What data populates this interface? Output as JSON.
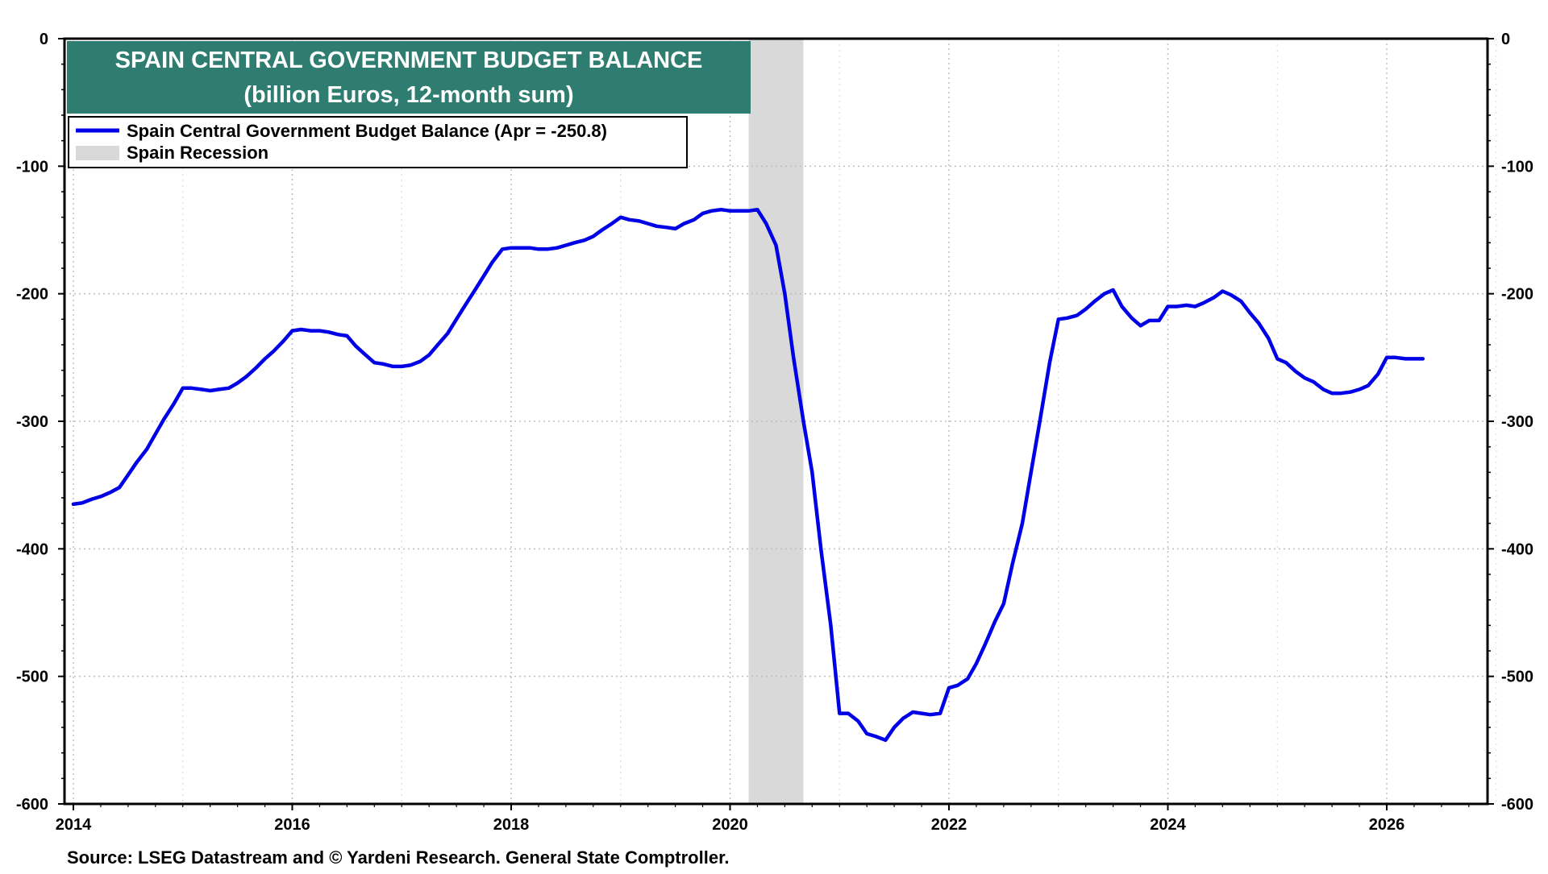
{
  "chart_data": {
    "type": "line",
    "title": "SPAIN CENTRAL GOVERNMENT BUDGET BALANCE",
    "subtitle": "(billion Euros, 12-month sum)",
    "source": "Source: LSEG Datastream and © Yardeni Research. General State Comptroller.",
    "xlim": [
      2014,
      2027
    ],
    "ylim": [
      -600,
      0
    ],
    "x_ticks": [
      2014,
      2016,
      2018,
      2020,
      2022,
      2024,
      2026
    ],
    "x_tick_labels": [
      "2014",
      "2016",
      "2018",
      "2020",
      "2022",
      "2024",
      "2026"
    ],
    "y_ticks": [
      0,
      -100,
      -200,
      -300,
      -400,
      -500,
      -600
    ],
    "y_tick_labels": [
      "0",
      "-100",
      "-200",
      "-300",
      "-400",
      "-500",
      "-600"
    ],
    "grid": true,
    "legend": {
      "position": "top-left",
      "entries": [
        {
          "label": "Spain Central Government Budget Balance (Apr = -250.8)",
          "kind": "line",
          "color": "#0000e6"
        },
        {
          "label": "Spain Recession",
          "kind": "band",
          "color": "#d9d9d9"
        }
      ]
    },
    "shaded_regions": [
      {
        "name": "Spain Recession",
        "x_start": 2020.17,
        "x_end": 2020.67
      }
    ],
    "series": [
      {
        "name": "Spain Central Government Budget Balance",
        "color": "#0000e6",
        "points": [
          [
            2014.0,
            -365
          ],
          [
            2014.08,
            -364
          ],
          [
            2014.17,
            -361
          ],
          [
            2014.25,
            -359
          ],
          [
            2014.33,
            -356
          ],
          [
            2014.42,
            -352
          ],
          [
            2014.5,
            -342
          ],
          [
            2014.58,
            -332
          ],
          [
            2014.67,
            -322
          ],
          [
            2014.75,
            -310
          ],
          [
            2014.83,
            -298
          ],
          [
            2014.92,
            -286
          ],
          [
            2015.0,
            -274
          ],
          [
            2015.08,
            -274
          ],
          [
            2015.17,
            -275
          ],
          [
            2015.25,
            -276
          ],
          [
            2015.33,
            -275
          ],
          [
            2015.42,
            -274
          ],
          [
            2015.5,
            -270
          ],
          [
            2015.58,
            -265
          ],
          [
            2015.67,
            -258
          ],
          [
            2015.75,
            -251
          ],
          [
            2015.83,
            -245
          ],
          [
            2015.92,
            -237
          ],
          [
            2016.0,
            -229
          ],
          [
            2016.08,
            -228
          ],
          [
            2016.17,
            -229
          ],
          [
            2016.25,
            -229
          ],
          [
            2016.33,
            -230
          ],
          [
            2016.42,
            -232
          ],
          [
            2016.5,
            -233
          ],
          [
            2016.58,
            -241
          ],
          [
            2016.67,
            -248
          ],
          [
            2016.75,
            -254
          ],
          [
            2016.83,
            -255
          ],
          [
            2016.92,
            -257
          ],
          [
            2017.0,
            -257
          ],
          [
            2017.08,
            -256
          ],
          [
            2017.17,
            -253
          ],
          [
            2017.25,
            -248
          ],
          [
            2017.33,
            -240
          ],
          [
            2017.42,
            -231
          ],
          [
            2017.5,
            -220
          ],
          [
            2017.58,
            -209
          ],
          [
            2017.67,
            -197
          ],
          [
            2017.75,
            -186
          ],
          [
            2017.83,
            -175
          ],
          [
            2017.92,
            -165
          ],
          [
            2018.0,
            -164
          ],
          [
            2018.08,
            -164
          ],
          [
            2018.17,
            -164
          ],
          [
            2018.25,
            -165
          ],
          [
            2018.33,
            -165
          ],
          [
            2018.42,
            -164
          ],
          [
            2018.5,
            -162
          ],
          [
            2018.58,
            -160
          ],
          [
            2018.67,
            -158
          ],
          [
            2018.75,
            -155
          ],
          [
            2018.83,
            -150
          ],
          [
            2018.92,
            -145
          ],
          [
            2019.0,
            -140
          ],
          [
            2019.08,
            -142
          ],
          [
            2019.17,
            -143
          ],
          [
            2019.25,
            -145
          ],
          [
            2019.33,
            -147
          ],
          [
            2019.42,
            -148
          ],
          [
            2019.5,
            -149
          ],
          [
            2019.58,
            -145
          ],
          [
            2019.67,
            -142
          ],
          [
            2019.75,
            -137
          ],
          [
            2019.83,
            -135
          ],
          [
            2019.92,
            -134
          ],
          [
            2020.0,
            -135
          ],
          [
            2020.08,
            -135
          ],
          [
            2020.17,
            -135
          ],
          [
            2020.25,
            -134
          ],
          [
            2020.33,
            -145
          ],
          [
            2020.42,
            -162
          ],
          [
            2020.5,
            -200
          ],
          [
            2020.58,
            -250
          ],
          [
            2020.67,
            -300
          ],
          [
            2020.75,
            -340
          ],
          [
            2020.83,
            -400
          ],
          [
            2020.92,
            -460
          ],
          [
            2021.0,
            -529
          ],
          [
            2021.08,
            -529
          ],
          [
            2021.17,
            -535
          ],
          [
            2021.25,
            -545
          ],
          [
            2021.33,
            -547
          ],
          [
            2021.42,
            -550
          ],
          [
            2021.5,
            -540
          ],
          [
            2021.58,
            -533
          ],
          [
            2021.67,
            -528
          ],
          [
            2021.75,
            -529
          ],
          [
            2021.83,
            -530
          ],
          [
            2021.92,
            -529
          ],
          [
            2022.0,
            -509
          ],
          [
            2022.08,
            -507
          ],
          [
            2022.17,
            -502
          ],
          [
            2022.25,
            -490
          ],
          [
            2022.33,
            -475
          ],
          [
            2022.42,
            -457
          ],
          [
            2022.5,
            -443
          ],
          [
            2022.58,
            -412
          ],
          [
            2022.67,
            -380
          ],
          [
            2022.75,
            -340
          ],
          [
            2022.83,
            -300
          ],
          [
            2022.92,
            -254
          ],
          [
            2023.0,
            -220
          ],
          [
            2023.08,
            -219
          ],
          [
            2023.17,
            -217
          ],
          [
            2023.25,
            -212
          ],
          [
            2023.33,
            -206
          ],
          [
            2023.42,
            -200
          ],
          [
            2023.5,
            -197
          ],
          [
            2023.58,
            -210
          ],
          [
            2023.67,
            -219
          ],
          [
            2023.75,
            -225
          ],
          [
            2023.83,
            -221
          ],
          [
            2023.92,
            -221
          ],
          [
            2024.0,
            -210
          ],
          [
            2024.08,
            -210
          ],
          [
            2024.17,
            -209
          ],
          [
            2024.25,
            -210
          ],
          [
            2024.33,
            -207
          ],
          [
            2024.42,
            -203
          ],
          [
            2024.5,
            -198
          ],
          [
            2024.58,
            -201
          ],
          [
            2024.67,
            -206
          ],
          [
            2024.75,
            -215
          ],
          [
            2024.83,
            -223
          ],
          [
            2024.92,
            -235
          ],
          [
            2025.0,
            -251
          ],
          [
            2025.08,
            -254
          ],
          [
            2025.17,
            -261
          ],
          [
            2025.25,
            -266
          ],
          [
            2025.33,
            -269
          ],
          [
            2025.42,
            -275
          ],
          [
            2025.5,
            -278
          ],
          [
            2025.58,
            -278
          ],
          [
            2025.67,
            -277
          ],
          [
            2025.75,
            -275
          ],
          [
            2025.83,
            -272
          ],
          [
            2025.92,
            -263
          ],
          [
            2026.0,
            -250
          ],
          [
            2026.08,
            -250
          ],
          [
            2026.17,
            -251
          ],
          [
            2026.25,
            -251
          ],
          [
            2026.33,
            -251
          ]
        ]
      }
    ]
  }
}
